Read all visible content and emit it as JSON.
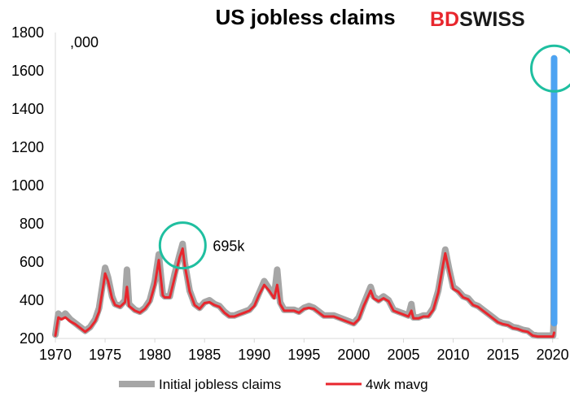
{
  "logo": {
    "part1": "BD",
    "part2": "SWISS",
    "brand_color": "#e8262d"
  },
  "chart_data": {
    "type": "line",
    "title": "US jobless claims",
    "unit_label": ",000",
    "xlim": [
      1970,
      2020.6
    ],
    "ylim": [
      200,
      1800
    ],
    "x_ticks": [
      1970,
      1975,
      1980,
      1985,
      1990,
      1995,
      2000,
      2005,
      2010,
      2015,
      2020
    ],
    "y_ticks": [
      200,
      400,
      600,
      800,
      1000,
      1200,
      1400,
      1600,
      1800
    ],
    "grid": false,
    "legend_position": "bottom",
    "series": [
      {
        "name": "Initial jobless claims",
        "color": "#a6a6a6",
        "points": [
          [
            1970,
            220
          ],
          [
            1970.3,
            330
          ],
          [
            1970.6,
            310
          ],
          [
            1971,
            330
          ],
          [
            1971.5,
            300
          ],
          [
            1972,
            280
          ],
          [
            1972.5,
            260
          ],
          [
            1973,
            240
          ],
          [
            1973.5,
            260
          ],
          [
            1974,
            300
          ],
          [
            1974.4,
            360
          ],
          [
            1974.8,
            500
          ],
          [
            1975,
            570
          ],
          [
            1975.3,
            520
          ],
          [
            1975.7,
            420
          ],
          [
            1976,
            380
          ],
          [
            1976.5,
            370
          ],
          [
            1977,
            400
          ],
          [
            1977.2,
            560
          ],
          [
            1977.4,
            380
          ],
          [
            1978,
            350
          ],
          [
            1978.5,
            340
          ],
          [
            1979,
            360
          ],
          [
            1979.5,
            400
          ],
          [
            1980,
            500
          ],
          [
            1980.4,
            640
          ],
          [
            1980.8,
            430
          ],
          [
            1981,
            420
          ],
          [
            1981.5,
            420
          ],
          [
            1982,
            540
          ],
          [
            1982.5,
            640
          ],
          [
            1982.8,
            695
          ],
          [
            1983,
            600
          ],
          [
            1983.5,
            450
          ],
          [
            1984,
            380
          ],
          [
            1984.5,
            360
          ],
          [
            1985,
            390
          ],
          [
            1985.5,
            400
          ],
          [
            1986,
            380
          ],
          [
            1986.5,
            370
          ],
          [
            1987,
            340
          ],
          [
            1987.5,
            320
          ],
          [
            1988,
            320
          ],
          [
            1988.5,
            330
          ],
          [
            1989,
            340
          ],
          [
            1989.5,
            350
          ],
          [
            1990,
            380
          ],
          [
            1990.5,
            440
          ],
          [
            1991,
            500
          ],
          [
            1991.5,
            460
          ],
          [
            1992,
            420
          ],
          [
            1992.3,
            560
          ],
          [
            1992.6,
            390
          ],
          [
            1993,
            350
          ],
          [
            1993.5,
            350
          ],
          [
            1994,
            350
          ],
          [
            1994.5,
            340
          ],
          [
            1995,
            360
          ],
          [
            1995.5,
            370
          ],
          [
            1996,
            360
          ],
          [
            1996.5,
            340
          ],
          [
            1997,
            320
          ],
          [
            1997.5,
            320
          ],
          [
            1998,
            320
          ],
          [
            1998.5,
            310
          ],
          [
            1999,
            300
          ],
          [
            1999.5,
            290
          ],
          [
            2000,
            280
          ],
          [
            2000.5,
            310
          ],
          [
            2001,
            380
          ],
          [
            2001.7,
            470
          ],
          [
            2002,
            420
          ],
          [
            2002.5,
            400
          ],
          [
            2003,
            420
          ],
          [
            2003.5,
            400
          ],
          [
            2004,
            350
          ],
          [
            2004.5,
            340
          ],
          [
            2005,
            330
          ],
          [
            2005.5,
            320
          ],
          [
            2005.8,
            380
          ],
          [
            2006,
            310
          ],
          [
            2006.5,
            310
          ],
          [
            2007,
            320
          ],
          [
            2007.5,
            320
          ],
          [
            2008,
            360
          ],
          [
            2008.5,
            450
          ],
          [
            2009,
            600
          ],
          [
            2009.2,
            665
          ],
          [
            2009.6,
            560
          ],
          [
            2010,
            470
          ],
          [
            2010.5,
            450
          ],
          [
            2011,
            420
          ],
          [
            2011.5,
            410
          ],
          [
            2012,
            380
          ],
          [
            2012.5,
            370
          ],
          [
            2013,
            350
          ],
          [
            2013.5,
            330
          ],
          [
            2014,
            310
          ],
          [
            2014.5,
            290
          ],
          [
            2015,
            280
          ],
          [
            2015.5,
            275
          ],
          [
            2016,
            260
          ],
          [
            2016.5,
            255
          ],
          [
            2017,
            245
          ],
          [
            2017.5,
            240
          ],
          [
            2018,
            220
          ],
          [
            2018.5,
            215
          ],
          [
            2019,
            215
          ],
          [
            2019.5,
            215
          ],
          [
            2020.05,
            215
          ],
          [
            2020.1,
            280
          ],
          [
            2020.15,
            1665
          ]
        ]
      },
      {
        "name": "4wk mavg",
        "color": "#e8262d",
        "points": [
          [
            1970,
            215
          ],
          [
            1970.3,
            310
          ],
          [
            1970.6,
            300
          ],
          [
            1971,
            310
          ],
          [
            1971.5,
            290
          ],
          [
            1972,
            275
          ],
          [
            1972.5,
            255
          ],
          [
            1973,
            235
          ],
          [
            1973.5,
            255
          ],
          [
            1974,
            290
          ],
          [
            1974.4,
            340
          ],
          [
            1974.8,
            470
          ],
          [
            1975,
            540
          ],
          [
            1975.3,
            500
          ],
          [
            1975.7,
            410
          ],
          [
            1976,
            375
          ],
          [
            1976.5,
            365
          ],
          [
            1977,
            390
          ],
          [
            1977.2,
            470
          ],
          [
            1977.4,
            370
          ],
          [
            1978,
            345
          ],
          [
            1978.5,
            335
          ],
          [
            1979,
            355
          ],
          [
            1979.5,
            390
          ],
          [
            1980,
            480
          ],
          [
            1980.4,
            610
          ],
          [
            1980.8,
            425
          ],
          [
            1981,
            415
          ],
          [
            1981.5,
            415
          ],
          [
            1982,
            520
          ],
          [
            1982.5,
            625
          ],
          [
            1982.8,
            670
          ],
          [
            1983,
            585
          ],
          [
            1983.5,
            445
          ],
          [
            1984,
            375
          ],
          [
            1984.5,
            355
          ],
          [
            1985,
            385
          ],
          [
            1985.5,
            390
          ],
          [
            1986,
            375
          ],
          [
            1986.5,
            365
          ],
          [
            1987,
            335
          ],
          [
            1987.5,
            315
          ],
          [
            1988,
            315
          ],
          [
            1988.5,
            325
          ],
          [
            1989,
            335
          ],
          [
            1989.5,
            345
          ],
          [
            1990,
            370
          ],
          [
            1990.5,
            430
          ],
          [
            1991,
            480
          ],
          [
            1991.5,
            450
          ],
          [
            1992,
            410
          ],
          [
            1992.3,
            480
          ],
          [
            1992.6,
            380
          ],
          [
            1993,
            345
          ],
          [
            1993.5,
            345
          ],
          [
            1994,
            345
          ],
          [
            1994.5,
            335
          ],
          [
            1995,
            355
          ],
          [
            1995.5,
            360
          ],
          [
            1996,
            355
          ],
          [
            1996.5,
            335
          ],
          [
            1997,
            315
          ],
          [
            1997.5,
            315
          ],
          [
            1998,
            315
          ],
          [
            1998.5,
            305
          ],
          [
            1999,
            295
          ],
          [
            1999.5,
            285
          ],
          [
            2000,
            275
          ],
          [
            2000.5,
            300
          ],
          [
            2001,
            370
          ],
          [
            2001.7,
            450
          ],
          [
            2002,
            410
          ],
          [
            2002.5,
            395
          ],
          [
            2003,
            410
          ],
          [
            2003.5,
            395
          ],
          [
            2004,
            345
          ],
          [
            2004.5,
            335
          ],
          [
            2005,
            325
          ],
          [
            2005.5,
            315
          ],
          [
            2005.8,
            345
          ],
          [
            2006,
            305
          ],
          [
            2006.5,
            305
          ],
          [
            2007,
            315
          ],
          [
            2007.5,
            315
          ],
          [
            2008,
            350
          ],
          [
            2008.5,
            440
          ],
          [
            2009,
            590
          ],
          [
            2009.2,
            645
          ],
          [
            2009.6,
            550
          ],
          [
            2010,
            460
          ],
          [
            2010.5,
            445
          ],
          [
            2011,
            415
          ],
          [
            2011.5,
            405
          ],
          [
            2012,
            375
          ],
          [
            2012.5,
            365
          ],
          [
            2013,
            345
          ],
          [
            2013.5,
            325
          ],
          [
            2014,
            305
          ],
          [
            2014.5,
            285
          ],
          [
            2015,
            275
          ],
          [
            2015.5,
            270
          ],
          [
            2016,
            255
          ],
          [
            2016.5,
            250
          ],
          [
            2017,
            240
          ],
          [
            2017.5,
            235
          ],
          [
            2018,
            215
          ],
          [
            2018.5,
            210
          ],
          [
            2019,
            210
          ],
          [
            2019.5,
            210
          ],
          [
            2020.05,
            210
          ],
          [
            2020.15,
            230
          ]
        ]
      }
    ],
    "highlight": {
      "color": "#4da3f2",
      "x": 2020.15,
      "from": 280,
      "to": 1665
    },
    "annotations": [
      {
        "text": "695k",
        "x": 1982.8,
        "y": 695,
        "circle_color": "#1fbfa0"
      },
      {
        "text": "",
        "x": 2020.15,
        "y": 1620,
        "circle_color": "#1fbfa0"
      }
    ]
  }
}
